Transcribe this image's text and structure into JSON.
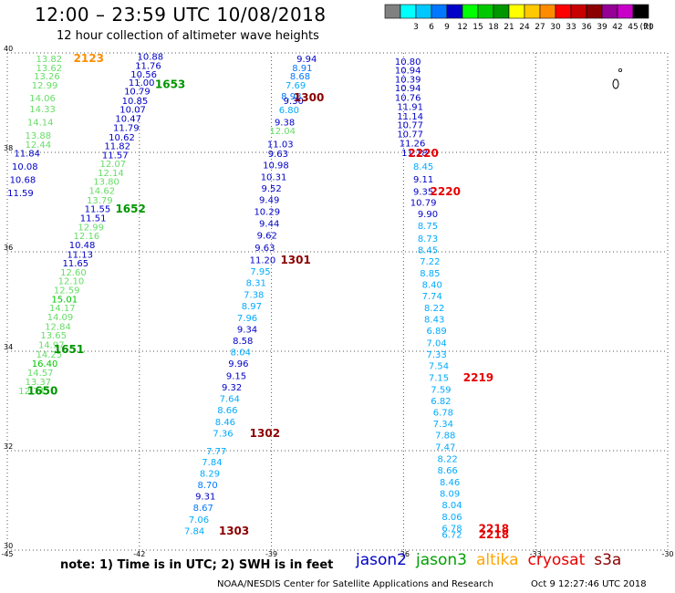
{
  "header": {
    "title": "12:00 – 23:59 UTC 10/08/2018",
    "subtitle": "12 hour collection of altimeter wave heights"
  },
  "color_scale": {
    "unit": "(ft)",
    "bins": [
      {
        "label": "",
        "color": "#808080"
      },
      {
        "label": "3",
        "color": "#00ffff"
      },
      {
        "label": "6",
        "color": "#00c8ff"
      },
      {
        "label": "9",
        "color": "#0078ff"
      },
      {
        "label": "12",
        "color": "#0000c8"
      },
      {
        "label": "15",
        "color": "#00ff00"
      },
      {
        "label": "18",
        "color": "#00c800"
      },
      {
        "label": "21",
        "color": "#009600"
      },
      {
        "label": "24",
        "color": "#ffff00"
      },
      {
        "label": "27",
        "color": "#ffc800"
      },
      {
        "label": "30",
        "color": "#ff8c00"
      },
      {
        "label": "33",
        "color": "#ff0000"
      },
      {
        "label": "36",
        "color": "#c80000"
      },
      {
        "label": "39",
        "color": "#8c0000"
      },
      {
        "label": "42",
        "color": "#960096"
      },
      {
        "label": "45",
        "color": "#c800c8"
      },
      {
        "label": "70",
        "color": "#000000"
      }
    ]
  },
  "chart_data": {
    "type": "scatter",
    "xlim": [
      -45,
      -30
    ],
    "ylim": [
      30,
      40
    ],
    "x_ticks": [
      "-45",
      "-42",
      "-39",
      "-36",
      "-33",
      "-30"
    ],
    "y_ticks": [
      "40",
      "38",
      "36",
      "34",
      "32",
      "30"
    ],
    "grid": true,
    "points": [
      {
        "x": -44.05,
        "y": 39.87,
        "v": "13.82",
        "c": "#66dd66"
      },
      {
        "x": -44.05,
        "y": 39.69,
        "v": "13.62",
        "c": "#66dd66"
      },
      {
        "x": -44.1,
        "y": 39.52,
        "v": "13.26",
        "c": "#66dd66"
      },
      {
        "x": -44.15,
        "y": 39.34,
        "v": "12.99",
        "c": "#66dd66"
      },
      {
        "x": -44.2,
        "y": 39.08,
        "v": "14.06",
        "c": "#66dd66"
      },
      {
        "x": -44.2,
        "y": 38.86,
        "v": "14.33",
        "c": "#66dd66"
      },
      {
        "x": -44.25,
        "y": 38.6,
        "v": "14.14",
        "c": "#66dd66"
      },
      {
        "x": -44.3,
        "y": 38.33,
        "v": "13.88",
        "c": "#66dd66"
      },
      {
        "x": -44.3,
        "y": 38.15,
        "v": "12.44",
        "c": "#66dd66"
      },
      {
        "x": -44.55,
        "y": 37.97,
        "v": "11.84",
        "c": "#0000c8"
      },
      {
        "x": -44.6,
        "y": 37.71,
        "v": "10.08",
        "c": "#0000c8"
      },
      {
        "x": -44.65,
        "y": 37.44,
        "v": "10.68",
        "c": "#0000c8"
      },
      {
        "x": -44.7,
        "y": 37.17,
        "v": "11.59",
        "c": "#0000c8"
      },
      {
        "x": -41.75,
        "y": 39.92,
        "v": "10.88",
        "c": "#0000c8"
      },
      {
        "x": -41.8,
        "y": 39.73,
        "v": "11.76",
        "c": "#0000c8"
      },
      {
        "x": -41.9,
        "y": 39.56,
        "v": "10.56",
        "c": "#0000c8"
      },
      {
        "x": -41.95,
        "y": 39.39,
        "v": "11.00",
        "c": "#0000c8"
      },
      {
        "x": -42.05,
        "y": 39.22,
        "v": "10.79",
        "c": "#0000c8"
      },
      {
        "x": -42.1,
        "y": 39.03,
        "v": "10.85",
        "c": "#0000c8"
      },
      {
        "x": -42.15,
        "y": 38.85,
        "v": "10.07",
        "c": "#0000c8"
      },
      {
        "x": -42.25,
        "y": 38.67,
        "v": "10.47",
        "c": "#0000c8"
      },
      {
        "x": -42.3,
        "y": 38.49,
        "v": "11.79",
        "c": "#0000c8"
      },
      {
        "x": -42.4,
        "y": 38.29,
        "v": "10.62",
        "c": "#0000c8"
      },
      {
        "x": -42.5,
        "y": 38.12,
        "v": "11.82",
        "c": "#0000c8"
      },
      {
        "x": -42.55,
        "y": 37.94,
        "v": "11.57",
        "c": "#0000c8"
      },
      {
        "x": -42.6,
        "y": 37.76,
        "v": "12.07",
        "c": "#66dd66"
      },
      {
        "x": -42.65,
        "y": 37.58,
        "v": "12.14",
        "c": "#66dd66"
      },
      {
        "x": -42.75,
        "y": 37.4,
        "v": "13.80",
        "c": "#66dd66"
      },
      {
        "x": -42.85,
        "y": 37.22,
        "v": "14.62",
        "c": "#66dd66"
      },
      {
        "x": -42.9,
        "y": 37.03,
        "v": "13.79",
        "c": "#66dd66"
      },
      {
        "x": -42.95,
        "y": 36.85,
        "v": "11.55",
        "c": "#0000c8"
      },
      {
        "x": -43.05,
        "y": 36.67,
        "v": "11.51",
        "c": "#0000c8"
      },
      {
        "x": -43.1,
        "y": 36.49,
        "v": "12.99",
        "c": "#66dd66"
      },
      {
        "x": -43.2,
        "y": 36.31,
        "v": "12.16",
        "c": "#66dd66"
      },
      {
        "x": -43.3,
        "y": 36.13,
        "v": "10.48",
        "c": "#0000c8"
      },
      {
        "x": -43.35,
        "y": 35.94,
        "v": "11.13",
        "c": "#0000c8"
      },
      {
        "x": -43.45,
        "y": 35.76,
        "v": "11.65",
        "c": "#0000c8"
      },
      {
        "x": -43.5,
        "y": 35.58,
        "v": "12.60",
        "c": "#66dd66"
      },
      {
        "x": -43.55,
        "y": 35.4,
        "v": "12.10",
        "c": "#66dd66"
      },
      {
        "x": -43.65,
        "y": 35.22,
        "v": "12.59",
        "c": "#66dd66"
      },
      {
        "x": -43.7,
        "y": 35.04,
        "v": "15.01",
        "c": "#00c800"
      },
      {
        "x": -43.75,
        "y": 34.86,
        "v": "14.17",
        "c": "#66dd66"
      },
      {
        "x": -43.8,
        "y": 34.68,
        "v": "14.09",
        "c": "#66dd66"
      },
      {
        "x": -43.85,
        "y": 34.49,
        "v": "12.84",
        "c": "#66dd66"
      },
      {
        "x": -43.95,
        "y": 34.31,
        "v": "13.65",
        "c": "#66dd66"
      },
      {
        "x": -44.0,
        "y": 34.12,
        "v": "14.97",
        "c": "#66dd66"
      },
      {
        "x": -44.05,
        "y": 33.93,
        "v": "14.25",
        "c": "#66dd66"
      },
      {
        "x": -44.15,
        "y": 33.74,
        "v": "16.40",
        "c": "#00c800"
      },
      {
        "x": -44.25,
        "y": 33.56,
        "v": "14.57",
        "c": "#66dd66"
      },
      {
        "x": -44.3,
        "y": 33.38,
        "v": "13.37",
        "c": "#66dd66"
      },
      {
        "x": -44.45,
        "y": 33.19,
        "v": "12.74",
        "c": "#66dd66"
      },
      {
        "x": -38.2,
        "y": 39.87,
        "v": "9.94",
        "c": "#0000c8"
      },
      {
        "x": -38.3,
        "y": 39.69,
        "v": "8.91",
        "c": "#0078ff"
      },
      {
        "x": -38.35,
        "y": 39.52,
        "v": "8.68",
        "c": "#0078ff"
      },
      {
        "x": -38.45,
        "y": 39.34,
        "v": "7.69",
        "c": "#00aaff"
      },
      {
        "x": -38.55,
        "y": 39.12,
        "v": "8.98",
        "c": "#0078ff"
      },
      {
        "x": -38.5,
        "y": 39.03,
        "v": "9.30",
        "c": "#0000c8"
      },
      {
        "x": -38.6,
        "y": 38.84,
        "v": "6.80",
        "c": "#00aaff"
      },
      {
        "x": -38.7,
        "y": 38.6,
        "v": "9.38",
        "c": "#0000c8"
      },
      {
        "x": -38.75,
        "y": 38.42,
        "v": "12.04",
        "c": "#66dd66"
      },
      {
        "x": -38.8,
        "y": 38.16,
        "v": "11.03",
        "c": "#0000c8"
      },
      {
        "x": -38.85,
        "y": 37.96,
        "v": "9.63",
        "c": "#0000c8"
      },
      {
        "x": -38.9,
        "y": 37.73,
        "v": "10.98",
        "c": "#0000c8"
      },
      {
        "x": -38.95,
        "y": 37.5,
        "v": "10.31",
        "c": "#0000c8"
      },
      {
        "x": -39.0,
        "y": 37.27,
        "v": "9.52",
        "c": "#0000c8"
      },
      {
        "x": -39.05,
        "y": 37.04,
        "v": "9.49",
        "c": "#0000c8"
      },
      {
        "x": -39.1,
        "y": 36.8,
        "v": "10.29",
        "c": "#0000c8"
      },
      {
        "x": -39.05,
        "y": 36.56,
        "v": "9.44",
        "c": "#0000c8"
      },
      {
        "x": -39.1,
        "y": 36.32,
        "v": "9.62",
        "c": "#0000c8"
      },
      {
        "x": -39.15,
        "y": 36.07,
        "v": "9.63",
        "c": "#0000c8"
      },
      {
        "x": -39.2,
        "y": 35.83,
        "v": "11.20",
        "c": "#0000c8"
      },
      {
        "x": -39.25,
        "y": 35.6,
        "v": "7.95",
        "c": "#00aaff"
      },
      {
        "x": -39.35,
        "y": 35.37,
        "v": "8.31",
        "c": "#00aaff"
      },
      {
        "x": -39.4,
        "y": 35.13,
        "v": "7.38",
        "c": "#00aaff"
      },
      {
        "x": -39.45,
        "y": 34.9,
        "v": "8.97",
        "c": "#00aaff"
      },
      {
        "x": -39.55,
        "y": 34.66,
        "v": "7.96",
        "c": "#00aaff"
      },
      {
        "x": -39.55,
        "y": 34.43,
        "v": "9.34",
        "c": "#0000c8"
      },
      {
        "x": -39.65,
        "y": 34.2,
        "v": "8.58",
        "c": "#0000c8"
      },
      {
        "x": -39.7,
        "y": 33.97,
        "v": "8.04",
        "c": "#00aaff"
      },
      {
        "x": -39.75,
        "y": 33.74,
        "v": "9.96",
        "c": "#0000c8"
      },
      {
        "x": -39.8,
        "y": 33.5,
        "v": "9.15",
        "c": "#0000c8"
      },
      {
        "x": -39.9,
        "y": 33.27,
        "v": "9.32",
        "c": "#0000c8"
      },
      {
        "x": -39.95,
        "y": 33.04,
        "v": "7.64",
        "c": "#00aaff"
      },
      {
        "x": -40.0,
        "y": 32.81,
        "v": "8.66",
        "c": "#00aaff"
      },
      {
        "x": -40.05,
        "y": 32.57,
        "v": "8.46",
        "c": "#00aaff"
      },
      {
        "x": -40.1,
        "y": 32.34,
        "v": "7.36",
        "c": "#00aaff"
      },
      {
        "x": -40.25,
        "y": 31.98,
        "v": "7.77",
        "c": "#00aaff"
      },
      {
        "x": -40.35,
        "y": 31.76,
        "v": "7.84",
        "c": "#00aaff"
      },
      {
        "x": -40.4,
        "y": 31.53,
        "v": "8.29",
        "c": "#00aaff"
      },
      {
        "x": -40.45,
        "y": 31.3,
        "v": "8.70",
        "c": "#0078ff"
      },
      {
        "x": -40.5,
        "y": 31.07,
        "v": "9.31",
        "c": "#0000c8"
      },
      {
        "x": -40.55,
        "y": 30.84,
        "v": "8.67",
        "c": "#0078ff"
      },
      {
        "x": -40.65,
        "y": 30.61,
        "v": "7.06",
        "c": "#00aaff"
      },
      {
        "x": -40.75,
        "y": 30.38,
        "v": "7.84",
        "c": "#00aaff"
      },
      {
        "x": -35.9,
        "y": 39.82,
        "v": "10.80",
        "c": "#0000c8"
      },
      {
        "x": -35.9,
        "y": 39.64,
        "v": "10.94",
        "c": "#0000c8"
      },
      {
        "x": -35.9,
        "y": 39.46,
        "v": "10.39",
        "c": "#0000c8"
      },
      {
        "x": -35.9,
        "y": 39.28,
        "v": "10.94",
        "c": "#0000c8"
      },
      {
        "x": -35.9,
        "y": 39.09,
        "v": "10.76",
        "c": "#0000c8"
      },
      {
        "x": -35.85,
        "y": 38.91,
        "v": "11.91",
        "c": "#0000c8"
      },
      {
        "x": -35.85,
        "y": 38.72,
        "v": "11.14",
        "c": "#0000c8"
      },
      {
        "x": -35.85,
        "y": 38.54,
        "v": "10.77",
        "c": "#0000c8"
      },
      {
        "x": -35.85,
        "y": 38.36,
        "v": "10.77",
        "c": "#0000c8"
      },
      {
        "x": -35.8,
        "y": 38.17,
        "v": "11.26",
        "c": "#0000c8"
      },
      {
        "x": -35.75,
        "y": 37.98,
        "v": "11.18",
        "c": "#0000c8"
      },
      {
        "x": -35.55,
        "y": 37.71,
        "v": "8.45",
        "c": "#00aaff"
      },
      {
        "x": -35.55,
        "y": 37.45,
        "v": "9.11",
        "c": "#0000c8"
      },
      {
        "x": -35.55,
        "y": 37.2,
        "v": "9.35",
        "c": "#0000c8"
      },
      {
        "x": -35.55,
        "y": 36.98,
        "v": "10.79",
        "c": "#0000c8"
      },
      {
        "x": -35.45,
        "y": 36.75,
        "v": "9.90",
        "c": "#0000c8"
      },
      {
        "x": -35.45,
        "y": 36.51,
        "v": "8.75",
        "c": "#00aaff"
      },
      {
        "x": -35.45,
        "y": 36.26,
        "v": "8.73",
        "c": "#00aaff"
      },
      {
        "x": -35.45,
        "y": 36.03,
        "v": "8.45",
        "c": "#00aaff"
      },
      {
        "x": -35.4,
        "y": 35.8,
        "v": "7.22",
        "c": "#00aaff"
      },
      {
        "x": -35.4,
        "y": 35.56,
        "v": "8.85",
        "c": "#00aaff"
      },
      {
        "x": -35.35,
        "y": 35.33,
        "v": "8.40",
        "c": "#00aaff"
      },
      {
        "x": -35.35,
        "y": 35.1,
        "v": "7.74",
        "c": "#00aaff"
      },
      {
        "x": -35.3,
        "y": 34.86,
        "v": "8.22",
        "c": "#00aaff"
      },
      {
        "x": -35.3,
        "y": 34.63,
        "v": "8.43",
        "c": "#00aaff"
      },
      {
        "x": -35.25,
        "y": 34.4,
        "v": "6.89",
        "c": "#00aaff"
      },
      {
        "x": -35.25,
        "y": 34.16,
        "v": "7.04",
        "c": "#00aaff"
      },
      {
        "x": -35.25,
        "y": 33.93,
        "v": "7.33",
        "c": "#00aaff"
      },
      {
        "x": -35.2,
        "y": 33.7,
        "v": "7.54",
        "c": "#00aaff"
      },
      {
        "x": -35.2,
        "y": 33.46,
        "v": "7.15",
        "c": "#00aaff"
      },
      {
        "x": -35.15,
        "y": 33.22,
        "v": "7.59",
        "c": "#00aaff"
      },
      {
        "x": -35.15,
        "y": 32.99,
        "v": "6.82",
        "c": "#00aaff"
      },
      {
        "x": -35.1,
        "y": 32.76,
        "v": "6.78",
        "c": "#00aaff"
      },
      {
        "x": -35.1,
        "y": 32.53,
        "v": "7.34",
        "c": "#00aaff"
      },
      {
        "x": -35.05,
        "y": 32.3,
        "v": "7.88",
        "c": "#00aaff"
      },
      {
        "x": -35.05,
        "y": 32.06,
        "v": "7.47",
        "c": "#00aaff"
      },
      {
        "x": -35.0,
        "y": 31.83,
        "v": "8.22",
        "c": "#00aaff"
      },
      {
        "x": -35.0,
        "y": 31.6,
        "v": "8.66",
        "c": "#00aaff"
      },
      {
        "x": -34.95,
        "y": 31.36,
        "v": "8.46",
        "c": "#00aaff"
      },
      {
        "x": -34.95,
        "y": 31.13,
        "v": "8.09",
        "c": "#00aaff"
      },
      {
        "x": -34.9,
        "y": 30.9,
        "v": "8.04",
        "c": "#00aaff"
      },
      {
        "x": -34.9,
        "y": 30.66,
        "v": "8.06",
        "c": "#00aaff"
      },
      {
        "x": -34.9,
        "y": 30.43,
        "v": "6.78",
        "c": "#00aaff"
      },
      {
        "x": -34.9,
        "y": 30.3,
        "v": "6.72",
        "c": "#00aaff"
      }
    ],
    "time_labels": [
      {
        "x": -43.15,
        "y": 39.88,
        "t": "2123",
        "c": "#ff8c00"
      },
      {
        "x": -41.3,
        "y": 39.36,
        "t": "1653",
        "c": "#009600"
      },
      {
        "x": -38.15,
        "y": 39.09,
        "t": "1300",
        "c": "#8c0000"
      },
      {
        "x": -35.55,
        "y": 37.97,
        "t": "2220",
        "c": "#e60000"
      },
      {
        "x": -35.05,
        "y": 37.2,
        "t": "2220",
        "c": "#e60000"
      },
      {
        "x": -42.2,
        "y": 36.85,
        "t": "1652",
        "c": "#009600"
      },
      {
        "x": -38.45,
        "y": 35.83,
        "t": "1301",
        "c": "#8c0000"
      },
      {
        "x": -43.6,
        "y": 34.03,
        "t": "1651",
        "c": "#009600"
      },
      {
        "x": -34.3,
        "y": 33.46,
        "t": "2219",
        "c": "#e60000"
      },
      {
        "x": -44.2,
        "y": 33.19,
        "t": "1650",
        "c": "#009600"
      },
      {
        "x": -39.15,
        "y": 32.34,
        "t": "1302",
        "c": "#8c0000"
      },
      {
        "x": -39.85,
        "y": 30.38,
        "t": "1303",
        "c": "#8c0000"
      },
      {
        "x": -33.95,
        "y": 30.42,
        "t": "2218",
        "c": "#e60000"
      },
      {
        "x": -33.95,
        "y": 30.3,
        "t": "2218",
        "c": "#e60000"
      }
    ]
  },
  "footer": {
    "note": "note:  1) Time is in UTC;  2) SWH is in feet",
    "legend": [
      {
        "name": "jason2",
        "color": "#0000c8"
      },
      {
        "name": "jason3",
        "color": "#00a000"
      },
      {
        "name": "altika",
        "color": "#ffa500"
      },
      {
        "name": "cryosat",
        "color": "#e60000"
      },
      {
        "name": "s3a",
        "color": "#8c0000"
      }
    ],
    "credit": "NOAA/NESDIS Center for Satellite Applications and Research",
    "timestamp": "Oct  9 12:27:46 UTC 2018"
  }
}
